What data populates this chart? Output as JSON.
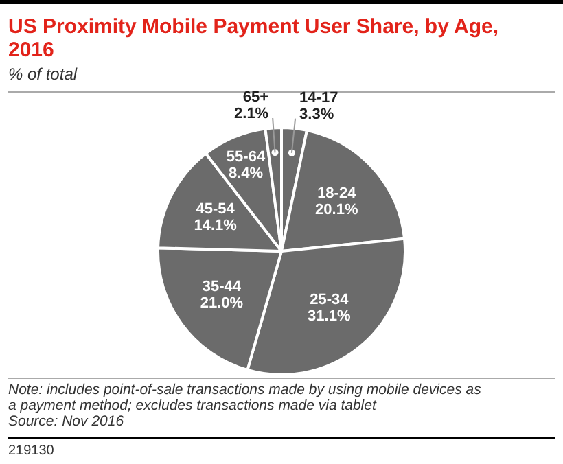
{
  "chart_data": {
    "type": "pie",
    "title": "US Proximity Mobile Payment User Share, by Age, 2016",
    "subtitle": "% of total",
    "categories": [
      "14-17",
      "18-24",
      "25-34",
      "35-44",
      "45-54",
      "55-64",
      "65+"
    ],
    "values": [
      3.3,
      20.1,
      31.1,
      21.0,
      14.1,
      8.4,
      2.1
    ],
    "value_labels": [
      "3.3%",
      "20.1%",
      "31.1%",
      "21.0%",
      "14.1%",
      "8.4%",
      "2.1%"
    ],
    "colors": [
      "#6b6b6b",
      "#6b6b6b",
      "#6b6b6b",
      "#6b6b6b",
      "#6b6b6b",
      "#6b6b6b",
      "#6b6b6b"
    ],
    "annotations": [
      "Note: includes point-of-sale transactions made by using mobile devices as a payment method; excludes transactions made via tablet",
      "Source: Nov 2016",
      "219130"
    ]
  }
}
